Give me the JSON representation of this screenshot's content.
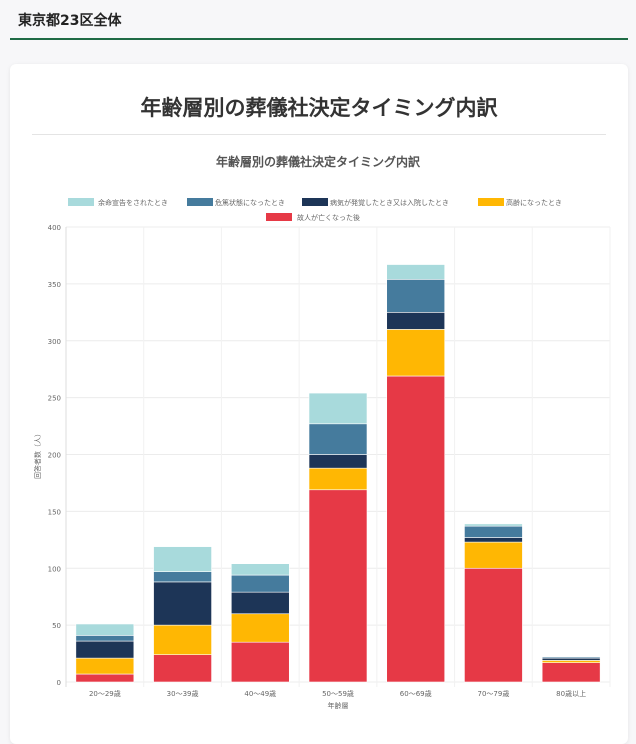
{
  "header": {
    "title": "東京都23区全体"
  },
  "card": {
    "title": "年齢層別の葬儀社決定タイミング内訳"
  },
  "chart_data": {
    "type": "bar",
    "stacked": true,
    "title": "年齢層別の葬儀社決定タイミング内訳",
    "xlabel": "年齢層",
    "ylabel": "回答者数（人）",
    "ylim": [
      0,
      400
    ],
    "yticks": [
      0,
      50,
      100,
      150,
      200,
      250,
      300,
      350,
      400
    ],
    "legend_position": "top",
    "categories": [
      "20〜29歳",
      "30〜39歳",
      "40〜49歳",
      "50〜59歳",
      "60〜69歳",
      "70〜79歳",
      "80歳以上"
    ],
    "series": [
      {
        "name": "故人が亡くなった後",
        "color": "#e63946",
        "values": [
          7,
          24,
          35,
          169,
          269,
          100,
          17
        ]
      },
      {
        "name": "高齢になったとき",
        "color": "#ffb703",
        "values": [
          14,
          26,
          25,
          19,
          41,
          23,
          2
        ]
      },
      {
        "name": "病気が発覚したとき又は入院したとき",
        "color": "#1d3557",
        "values": [
          15,
          38,
          19,
          12,
          15,
          4,
          2
        ]
      },
      {
        "name": "危篤状態になったとき",
        "color": "#457b9d",
        "values": [
          5,
          9,
          15,
          27,
          29,
          10,
          1
        ]
      },
      {
        "name": "余命宣告をされたとき",
        "color": "#a8dadc",
        "values": [
          10,
          22,
          10,
          27,
          13,
          2,
          0
        ]
      }
    ],
    "legend_order": [
      4,
      3,
      2,
      1,
      0
    ]
  }
}
